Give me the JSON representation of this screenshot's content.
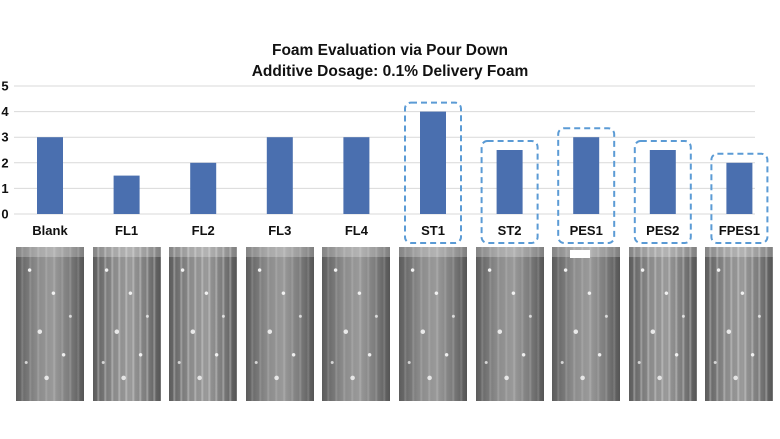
{
  "chart_data": {
    "type": "bar",
    "title": "Foam Evaluation via Pour Down",
    "subtitle": "Additive Dosage: 0.1% Delivery Foam",
    "categories": [
      "Blank",
      "FL1",
      "FL2",
      "FL3",
      "FL4",
      "ST1",
      "ST2",
      "PES1",
      "PES2",
      "FPES1"
    ],
    "values": [
      3,
      1.5,
      2,
      3,
      3,
      4,
      2.5,
      3,
      2.5,
      2
    ],
    "highlighted": [
      "ST1",
      "ST2",
      "PES1",
      "PES2",
      "FPES1"
    ],
    "ylim": [
      0,
      5
    ],
    "yticks": [
      0,
      1,
      2,
      3,
      4,
      5
    ],
    "grid": true,
    "xlabel": "",
    "ylabel": "",
    "bar_color": "#4a6faf",
    "highlight_color": "#5b9bd5",
    "grid_color": "#d9d9d9"
  },
  "photos": [
    "Blank",
    "FL1",
    "FL2",
    "FL3",
    "FL4",
    "ST1",
    "ST2",
    "PES1",
    "PES2",
    "FPES1"
  ]
}
